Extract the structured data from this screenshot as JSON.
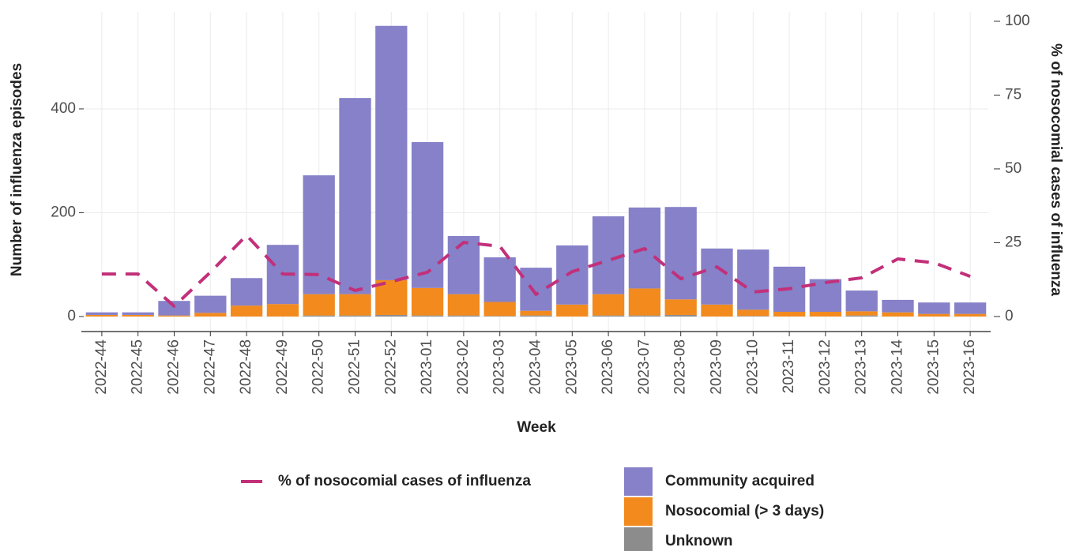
{
  "chart_data": {
    "type": "bar",
    "x_label": "Week",
    "y_label": "Number of influenza episodes",
    "y2_label": "% of nosocomial cases of influenza",
    "categories": [
      "2022-44",
      "2022-45",
      "2022-46",
      "2022-47",
      "2022-48",
      "2022-49",
      "2022-50",
      "2022-51",
      "2022-52",
      "2023-01",
      "2023-02",
      "2023-03",
      "2023-04",
      "2023-05",
      "2023-06",
      "2023-07",
      "2023-08",
      "2023-09",
      "2023-10",
      "2023-11",
      "2023-12",
      "2023-13",
      "2023-14",
      "2023-15",
      "2023-16"
    ],
    "series": [
      {
        "name": "Community acquired",
        "color": "#8681c8",
        "values": [
          5,
          5,
          28,
          33,
          53,
          114,
          229,
          378,
          490,
          281,
          112,
          86,
          83,
          114,
          150,
          156,
          178,
          108,
          116,
          87,
          63,
          40,
          24,
          22,
          22
        ]
      },
      {
        "name": "Nosocomial (> 3 days)",
        "color": "#f28a1e",
        "values": [
          3,
          3,
          2,
          7,
          21,
          24,
          41,
          41,
          67,
          53,
          41,
          27,
          9,
          23,
          41,
          52,
          30,
          23,
          12,
          9,
          9,
          8,
          8,
          5,
          5
        ]
      },
      {
        "name": "Unknown",
        "color": "#8c8c8c",
        "values": [
          0,
          0,
          0,
          0,
          0,
          0,
          2,
          2,
          3,
          2,
          2,
          1,
          2,
          0,
          2,
          2,
          3,
          0,
          1,
          0,
          0,
          2,
          0,
          0,
          0
        ]
      },
      {
        "name": "% of nosocomial cases of influenza",
        "type": "line",
        "axis": "y2",
        "color": "#c2307a",
        "values": [
          14.4,
          14.4,
          3.5,
          15,
          27.5,
          14.4,
          14.2,
          8.8,
          11.8,
          15,
          25.1,
          23.8,
          7.5,
          15.2,
          19,
          23,
          12.8,
          16.8,
          8.3,
          9.4,
          11.5,
          13.1,
          19.5,
          18.2,
          13.6
        ]
      }
    ],
    "ylim": [
      -29,
      587
    ],
    "yticks": [
      0,
      200,
      400
    ],
    "y2lim": [
      -5.1,
      103.2
    ],
    "y2ticks": [
      0,
      25,
      50,
      75,
      100
    ],
    "grid": true
  }
}
